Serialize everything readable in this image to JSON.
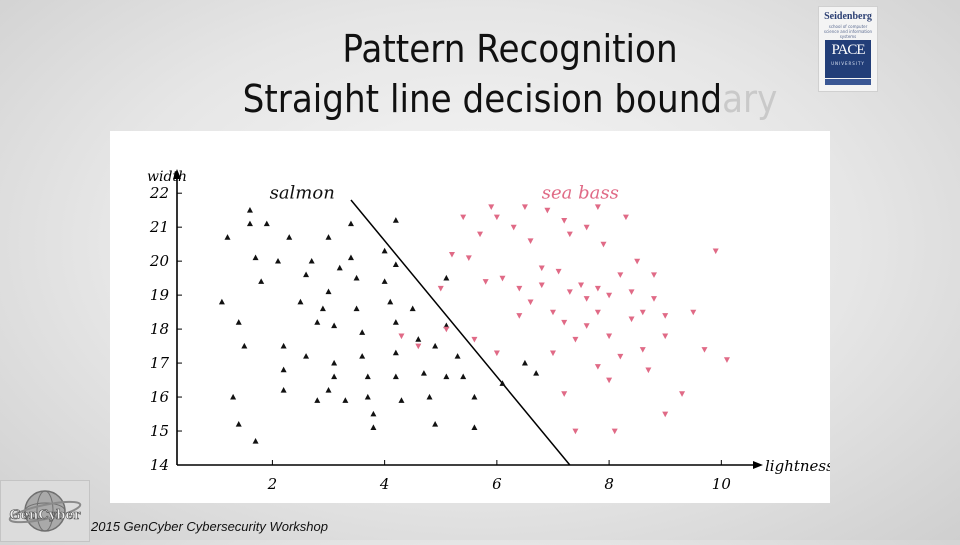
{
  "slide": {
    "title_line1": "Pattern Recognition",
    "title_line2_main": "Straight line decision bound",
    "title_line2_fade": "ary",
    "footer": "2015 GenCyber Cybersecurity Workshop",
    "logo_top": "Seidenberg",
    "logo_sub": "school of computer science and information systems",
    "logo_mark": "PACE",
    "logo_mark_sub": "UNIVERSITY",
    "gencyber_logo": "GenCyber"
  },
  "chart_data": {
    "type": "scatter",
    "xlabel": "lightness",
    "ylabel": "width",
    "xlim": [
      0.3,
      10.6
    ],
    "ylim": [
      14,
      22.3
    ],
    "x_ticks": [
      2,
      4,
      6,
      8,
      10
    ],
    "y_ticks": [
      14,
      15,
      16,
      17,
      18,
      19,
      20,
      21,
      22
    ],
    "grid": false,
    "decision_boundary": {
      "x": [
        3.4,
        7.3
      ],
      "y": [
        21.8,
        14.0
      ]
    },
    "series": [
      {
        "name": "salmon",
        "color": "#111111",
        "marker": "triangle",
        "points": [
          [
            1.2,
            20.7
          ],
          [
            1.6,
            21.5
          ],
          [
            1.6,
            21.1
          ],
          [
            1.9,
            21.1
          ],
          [
            1.1,
            18.8
          ],
          [
            1.7,
            20.1
          ],
          [
            1.8,
            19.4
          ],
          [
            2.1,
            20.0
          ],
          [
            2.3,
            20.7
          ],
          [
            1.4,
            18.2
          ],
          [
            1.5,
            17.5
          ],
          [
            1.4,
            15.2
          ],
          [
            1.7,
            14.7
          ],
          [
            2.2,
            17.5
          ],
          [
            2.2,
            16.8
          ],
          [
            2.2,
            16.2
          ],
          [
            2.5,
            18.8
          ],
          [
            2.6,
            19.6
          ],
          [
            2.7,
            20.0
          ],
          [
            2.8,
            18.2
          ],
          [
            2.9,
            18.6
          ],
          [
            3.0,
            20.7
          ],
          [
            3.0,
            19.1
          ],
          [
            3.1,
            18.1
          ],
          [
            3.1,
            17.0
          ],
          [
            3.1,
            16.6
          ],
          [
            3.3,
            15.9
          ],
          [
            3.2,
            19.8
          ],
          [
            3.4,
            20.1
          ],
          [
            3.4,
            21.1
          ],
          [
            3.5,
            19.5
          ],
          [
            3.5,
            18.6
          ],
          [
            3.6,
            17.9
          ],
          [
            3.6,
            17.2
          ],
          [
            3.7,
            16.6
          ],
          [
            3.7,
            16.0
          ],
          [
            3.8,
            15.1
          ],
          [
            3.8,
            15.5
          ],
          [
            4.0,
            20.3
          ],
          [
            4.0,
            19.4
          ],
          [
            4.1,
            18.8
          ],
          [
            4.2,
            19.9
          ],
          [
            4.2,
            18.2
          ],
          [
            4.2,
            17.3
          ],
          [
            4.2,
            16.6
          ],
          [
            4.3,
            15.9
          ],
          [
            4.5,
            18.6
          ],
          [
            4.6,
            17.7
          ],
          [
            4.7,
            16.7
          ],
          [
            4.8,
            16.0
          ],
          [
            4.9,
            15.2
          ],
          [
            4.9,
            17.5
          ],
          [
            5.1,
            19.5
          ],
          [
            5.1,
            18.1
          ],
          [
            5.3,
            17.2
          ],
          [
            5.4,
            16.6
          ],
          [
            5.6,
            16.0
          ],
          [
            5.1,
            16.6
          ],
          [
            5.6,
            15.1
          ],
          [
            6.1,
            16.4
          ],
          [
            6.5,
            17.0
          ],
          [
            6.7,
            16.7
          ],
          [
            2.6,
            17.2
          ],
          [
            4.2,
            21.2
          ],
          [
            2.8,
            15.9
          ],
          [
            1.3,
            16.0
          ],
          [
            3.0,
            16.2
          ]
        ]
      },
      {
        "name": "sea bass",
        "color": "#e06a86",
        "marker": "triangle-down",
        "points": [
          [
            5.4,
            21.3
          ],
          [
            5.7,
            20.8
          ],
          [
            6.0,
            21.3
          ],
          [
            6.3,
            21.0
          ],
          [
            6.5,
            21.6
          ],
          [
            6.6,
            20.6
          ],
          [
            6.9,
            21.5
          ],
          [
            7.2,
            21.2
          ],
          [
            7.3,
            20.8
          ],
          [
            7.6,
            21.0
          ],
          [
            7.8,
            21.6
          ],
          [
            8.3,
            21.3
          ],
          [
            7.9,
            20.5
          ],
          [
            5.2,
            20.2
          ],
          [
            5.5,
            20.1
          ],
          [
            6.1,
            19.5
          ],
          [
            6.4,
            19.2
          ],
          [
            6.6,
            18.8
          ],
          [
            6.8,
            19.3
          ],
          [
            7.1,
            19.7
          ],
          [
            7.3,
            19.1
          ],
          [
            7.5,
            19.3
          ],
          [
            7.6,
            18.9
          ],
          [
            7.8,
            19.2
          ],
          [
            8.0,
            19.0
          ],
          [
            8.2,
            19.6
          ],
          [
            8.4,
            19.1
          ],
          [
            8.5,
            20.0
          ],
          [
            8.6,
            18.5
          ],
          [
            8.8,
            19.6
          ],
          [
            9.0,
            18.4
          ],
          [
            9.0,
            17.8
          ],
          [
            9.5,
            18.5
          ],
          [
            9.9,
            20.3
          ],
          [
            5.0,
            19.2
          ],
          [
            5.8,
            19.4
          ],
          [
            6.4,
            18.4
          ],
          [
            7.0,
            18.5
          ],
          [
            7.2,
            18.2
          ],
          [
            7.4,
            17.7
          ],
          [
            7.6,
            18.1
          ],
          [
            7.8,
            18.5
          ],
          [
            8.0,
            17.8
          ],
          [
            8.2,
            17.2
          ],
          [
            8.4,
            18.3
          ],
          [
            8.6,
            17.4
          ],
          [
            7.8,
            16.9
          ],
          [
            8.0,
            16.5
          ],
          [
            9.3,
            16.1
          ],
          [
            9.0,
            15.5
          ],
          [
            9.7,
            17.4
          ],
          [
            10.1,
            17.1
          ],
          [
            7.0,
            17.3
          ],
          [
            7.2,
            16.1
          ],
          [
            8.7,
            16.8
          ],
          [
            8.1,
            15.0
          ],
          [
            4.3,
            17.8
          ],
          [
            4.6,
            17.5
          ],
          [
            5.1,
            18.0
          ],
          [
            5.6,
            17.7
          ],
          [
            6.0,
            17.3
          ],
          [
            7.4,
            15.0
          ],
          [
            8.8,
            18.9
          ],
          [
            6.8,
            19.8
          ],
          [
            5.9,
            21.6
          ]
        ]
      }
    ]
  }
}
